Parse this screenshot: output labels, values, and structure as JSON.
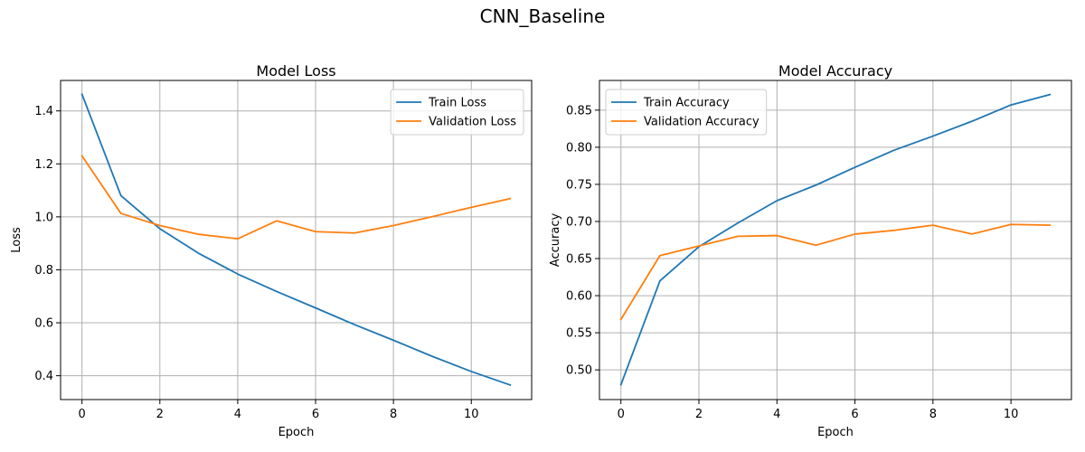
{
  "figure_title": "CNN_Baseline",
  "colors": {
    "train": "#1f77b4",
    "validation": "#ff7f0e",
    "grid": "#b0b0b0"
  },
  "chart_data": [
    {
      "type": "line",
      "title": "Model Loss",
      "xlabel": "Epoch",
      "ylabel": "Loss",
      "xlim": [
        -0.55,
        11.55
      ],
      "ylim": [
        0.31,
        1.515
      ],
      "xticks": [
        0,
        2,
        4,
        6,
        8,
        10
      ],
      "yticks": [
        0.4,
        0.6,
        0.8,
        1.0,
        1.2,
        1.4
      ],
      "ytick_labels": [
        "0.4",
        "0.6",
        "0.8",
        "1.0",
        "1.2",
        "1.4"
      ],
      "grid": true,
      "legend_position": "top-right",
      "x": [
        0,
        1,
        2,
        3,
        4,
        5,
        6,
        7,
        8,
        9,
        10,
        11
      ],
      "series": [
        {
          "name": "Train Loss",
          "color": "#1f77b4",
          "values": [
            1.463,
            1.08,
            0.955,
            0.862,
            0.784,
            0.718,
            0.656,
            0.593,
            0.534,
            0.473,
            0.416,
            0.365
          ]
        },
        {
          "name": "Validation Loss",
          "color": "#ff7f0e",
          "values": [
            1.23,
            1.013,
            0.967,
            0.934,
            0.917,
            0.985,
            0.944,
            0.939,
            0.967,
            1.001,
            1.036,
            1.069
          ]
        }
      ]
    },
    {
      "type": "line",
      "title": "Model Accuracy",
      "xlabel": "Epoch",
      "ylabel": "Accuracy",
      "xlim": [
        -0.55,
        11.55
      ],
      "ylim": [
        0.46,
        0.89
      ],
      "xticks": [
        0,
        2,
        4,
        6,
        8,
        10
      ],
      "yticks": [
        0.5,
        0.55,
        0.6,
        0.65,
        0.7,
        0.75,
        0.8,
        0.85
      ],
      "ytick_labels": [
        "0.50",
        "0.55",
        "0.60",
        "0.65",
        "0.70",
        "0.75",
        "0.80",
        "0.85"
      ],
      "grid": true,
      "legend_position": "top-left",
      "x": [
        0,
        1,
        2,
        3,
        4,
        5,
        6,
        7,
        8,
        9,
        10,
        11
      ],
      "series": [
        {
          "name": "Train Accuracy",
          "color": "#1f77b4",
          "values": [
            0.48,
            0.62,
            0.666,
            0.698,
            0.728,
            0.749,
            0.773,
            0.796,
            0.815,
            0.835,
            0.857,
            0.871
          ]
        },
        {
          "name": "Validation Accuracy",
          "color": "#ff7f0e",
          "values": [
            0.568,
            0.654,
            0.667,
            0.68,
            0.681,
            0.668,
            0.683,
            0.688,
            0.695,
            0.683,
            0.696,
            0.695
          ]
        }
      ]
    }
  ]
}
